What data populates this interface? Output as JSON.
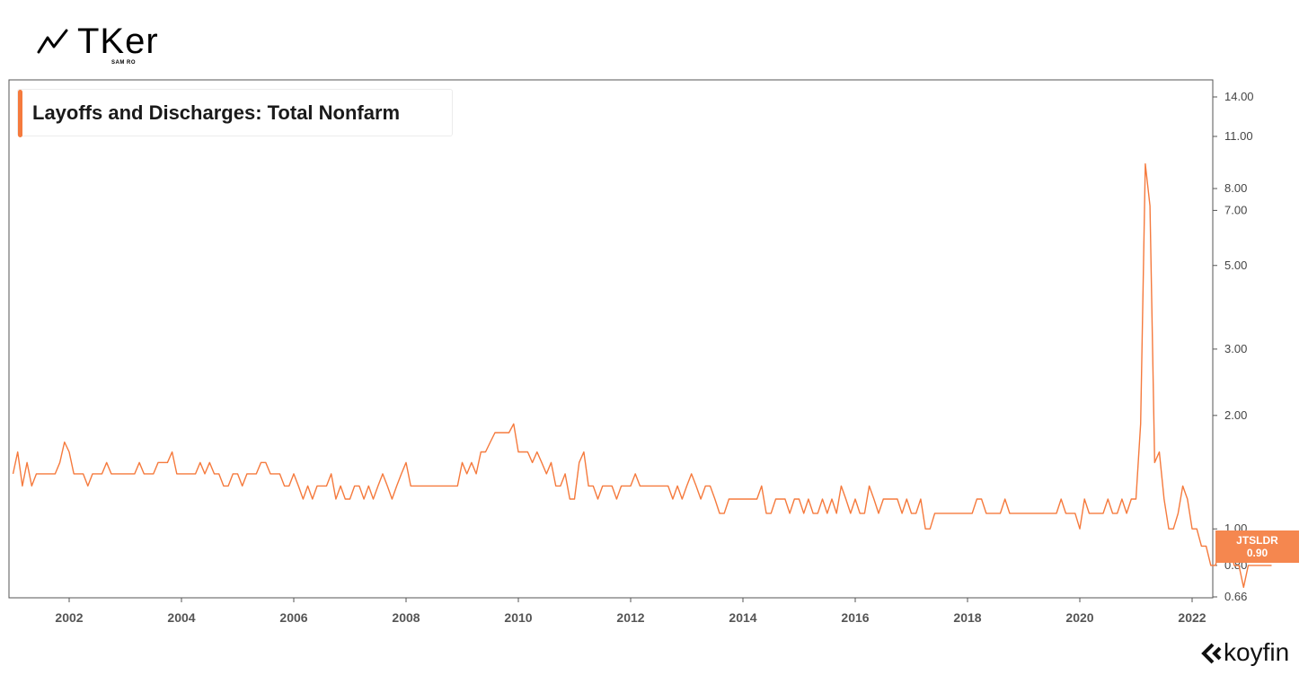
{
  "brand": {
    "name": "TKer",
    "sub": "SAM RO",
    "icon": "trend-line-icon"
  },
  "footer": {
    "provider": "koyfin",
    "icon": "koyfin-logo-icon"
  },
  "last_value": {
    "ticker": "JTSLDR",
    "value": "0.90"
  },
  "colors": {
    "line": "#f57a3d",
    "badge": "#f5874f",
    "axis": "#555555"
  },
  "chart_data": {
    "type": "line",
    "title": "Layoffs and Discharges: Total Nonfarm",
    "xlabel": "",
    "ylabel": "",
    "y_scale": "log",
    "ylim": [
      0.66,
      16
    ],
    "xlim": [
      "2001-01",
      "2022-07"
    ],
    "grid": false,
    "y_ticks": [
      "0.66",
      "0.80",
      "1.00",
      "2.00",
      "3.00",
      "5.00",
      "7.00",
      "8.00",
      "11.00",
      "14.00"
    ],
    "x_ticks": [
      "2002",
      "2004",
      "2006",
      "2008",
      "2010",
      "2012",
      "2014",
      "2016",
      "2018",
      "2020",
      "2022"
    ],
    "series": [
      {
        "name": "JTSLDR",
        "x_start": "2001-01",
        "frequency": "monthly",
        "values": [
          1.4,
          1.6,
          1.3,
          1.5,
          1.3,
          1.4,
          1.4,
          1.4,
          1.4,
          1.4,
          1.5,
          1.7,
          1.6,
          1.4,
          1.4,
          1.4,
          1.3,
          1.4,
          1.4,
          1.4,
          1.5,
          1.4,
          1.4,
          1.4,
          1.4,
          1.4,
          1.4,
          1.5,
          1.4,
          1.4,
          1.4,
          1.5,
          1.5,
          1.5,
          1.6,
          1.4,
          1.4,
          1.4,
          1.4,
          1.4,
          1.5,
          1.4,
          1.5,
          1.4,
          1.4,
          1.3,
          1.3,
          1.4,
          1.4,
          1.3,
          1.4,
          1.4,
          1.4,
          1.5,
          1.5,
          1.4,
          1.4,
          1.4,
          1.3,
          1.3,
          1.4,
          1.3,
          1.2,
          1.3,
          1.2,
          1.3,
          1.3,
          1.3,
          1.4,
          1.2,
          1.3,
          1.2,
          1.2,
          1.3,
          1.3,
          1.2,
          1.3,
          1.2,
          1.3,
          1.4,
          1.3,
          1.2,
          1.3,
          1.4,
          1.5,
          1.3,
          1.3,
          1.3,
          1.3,
          1.3,
          1.3,
          1.3,
          1.3,
          1.3,
          1.3,
          1.3,
          1.5,
          1.4,
          1.5,
          1.4,
          1.6,
          1.6,
          1.7,
          1.8,
          1.8,
          1.8,
          1.8,
          1.9,
          1.6,
          1.6,
          1.6,
          1.5,
          1.6,
          1.5,
          1.4,
          1.5,
          1.3,
          1.3,
          1.4,
          1.2,
          1.2,
          1.5,
          1.6,
          1.3,
          1.3,
          1.2,
          1.3,
          1.3,
          1.3,
          1.2,
          1.3,
          1.3,
          1.3,
          1.4,
          1.3,
          1.3,
          1.3,
          1.3,
          1.3,
          1.3,
          1.3,
          1.2,
          1.3,
          1.2,
          1.3,
          1.4,
          1.3,
          1.2,
          1.3,
          1.3,
          1.2,
          1.1,
          1.1,
          1.2,
          1.2,
          1.2,
          1.2,
          1.2,
          1.2,
          1.2,
          1.3,
          1.1,
          1.1,
          1.2,
          1.2,
          1.2,
          1.1,
          1.2,
          1.2,
          1.1,
          1.2,
          1.1,
          1.1,
          1.2,
          1.1,
          1.2,
          1.1,
          1.3,
          1.2,
          1.1,
          1.2,
          1.1,
          1.1,
          1.3,
          1.2,
          1.1,
          1.2,
          1.2,
          1.2,
          1.2,
          1.1,
          1.2,
          1.1,
          1.1,
          1.2,
          1.0,
          1.0,
          1.1,
          1.1,
          1.1,
          1.1,
          1.1,
          1.1,
          1.1,
          1.1,
          1.1,
          1.2,
          1.2,
          1.1,
          1.1,
          1.1,
          1.1,
          1.2,
          1.1,
          1.1,
          1.1,
          1.1,
          1.1,
          1.1,
          1.1,
          1.1,
          1.1,
          1.1,
          1.1,
          1.2,
          1.1,
          1.1,
          1.1,
          1.0,
          1.2,
          1.1,
          1.1,
          1.1,
          1.1,
          1.2,
          1.1,
          1.1,
          1.2,
          1.1,
          1.2,
          1.2,
          1.9,
          9.3,
          7.2,
          1.5,
          1.6,
          1.2,
          1.0,
          1.0,
          1.1,
          1.3,
          1.2,
          1.0,
          1.0,
          0.9,
          0.9,
          0.8,
          0.8,
          0.9,
          0.9,
          0.9,
          0.8,
          0.8,
          0.7,
          0.8,
          0.8,
          0.8,
          0.8,
          0.8,
          0.8
        ]
      }
    ]
  }
}
